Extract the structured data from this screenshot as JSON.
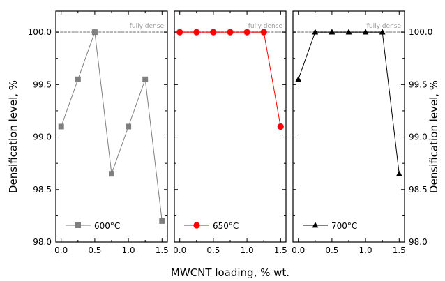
{
  "chart_data": {
    "type": "line",
    "xlabel": "MWCNT loading, % wt.",
    "ylabel": "Densification level, %",
    "xlim": [
      -0.08,
      1.58
    ],
    "ylim": [
      98.0,
      100.2
    ],
    "x_ticks": [
      0.0,
      0.5,
      1.0,
      1.5
    ],
    "x_tick_labels": [
      "0.0",
      "0.5",
      "1.0",
      "1.5"
    ],
    "y_ticks": [
      98.0,
      98.5,
      99.0,
      99.5,
      100.0
    ],
    "y_tick_labels": [
      "98.0",
      "98.5",
      "99.0",
      "99.5",
      "100.0"
    ],
    "reference_line": {
      "y": 100.0,
      "label": "fully dense",
      "color": "#b8b8b8"
    },
    "grid": false,
    "legend_placement": "bottom-center",
    "panels": [
      {
        "series": [
          {
            "name": "600°C",
            "color": "#7f7f7f",
            "marker": "square",
            "x": [
              0.0,
              0.25,
              0.5,
              0.75,
              1.0,
              1.25,
              1.5
            ],
            "y": [
              99.1,
              99.55,
              100.0,
              98.65,
              99.1,
              99.55,
              98.2
            ]
          }
        ]
      },
      {
        "series": [
          {
            "name": "650°C",
            "color": "#ff0000",
            "marker": "circle",
            "x": [
              0.0,
              0.25,
              0.5,
              0.75,
              1.0,
              1.25,
              1.5
            ],
            "y": [
              100.0,
              100.0,
              100.0,
              100.0,
              100.0,
              100.0,
              99.1
            ]
          }
        ]
      },
      {
        "series": [
          {
            "name": "700°C",
            "color": "#000000",
            "marker": "triangle",
            "x": [
              0.0,
              0.25,
              0.5,
              0.75,
              1.0,
              1.25,
              1.5
            ],
            "y": [
              99.55,
              100.0,
              100.0,
              100.0,
              100.0,
              100.0,
              98.65
            ]
          }
        ]
      }
    ]
  }
}
